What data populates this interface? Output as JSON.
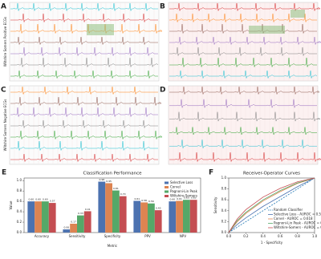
{
  "panels": [
    {
      "letter": "A",
      "side_label": "Wiltshire Somers Positive ECGs"
    },
    {
      "letter": "B"
    },
    {
      "letter": "C",
      "side_label": "Wiltshire Somers Negative ECGs"
    },
    {
      "letter": "D"
    }
  ],
  "chart_data": [
    {
      "type": "bar",
      "panel": "E",
      "title": "Classification Performance",
      "x_label": "Metric",
      "y_label": "Value",
      "categories": [
        "Accuracy",
        "Sensitivity",
        "Specificity",
        "PPV",
        "NPV"
      ],
      "ylim": [
        0,
        1.05
      ],
      "yticks": [
        {
          "value": 0,
          "label": "0.0"
        },
        0.2,
        0.4,
        0.6,
        0.8,
        {
          "value": 1,
          "label": "1.0"
        }
      ],
      "legend": "upper right",
      "series": [
        {
          "name": "Selective Loss",
          "color": "#4c72b0",
          "values": [
            0.6,
            0.06,
            0.98,
            0.61,
            0.6
          ],
          "value_labels": [
            "0.60",
            "0.06",
            "0.98",
            "0.61",
            "0.60"
          ]
        },
        {
          "name": "Corvel",
          "color": "#dd8452",
          "values": [
            0.6,
            0.17,
            0.95,
            0.58,
            0.61
          ],
          "value_labels": [
            "0.60",
            "0.17",
            "0.95",
            "0.58",
            "0.61"
          ]
        },
        {
          "name": "Pagnoni-Lin Peak",
          "color": "#55a868",
          "values": [
            0.6,
            0.33,
            0.81,
            0.56,
            0.63
          ],
          "value_labels": [
            "0.60",
            "0.33",
            "0.81",
            "0.56",
            "0.63"
          ]
        },
        {
          "name": "Wiltshire-Somers",
          "color": "#c44e52",
          "values": [
            0.57,
            0.41,
            0.7,
            0.43,
            0.63
          ],
          "value_labels": [
            "0.57",
            "0.41",
            "0.70",
            "0.43",
            "0.63"
          ]
        }
      ]
    },
    {
      "type": "line",
      "panel": "F",
      "title": "Receiver-Operator Curves",
      "x_label": "1 - Specificity",
      "y_label": "Sensitivity",
      "xlim": [
        0,
        1
      ],
      "ylim": [
        0,
        1
      ],
      "xticks": [
        {
          "value": 0,
          "label": "0.0"
        },
        0.2,
        0.4,
        0.6,
        0.8,
        {
          "value": 1,
          "label": "1.0"
        }
      ],
      "yticks": [
        {
          "value": 0,
          "label": "0.0"
        },
        0.2,
        0.4,
        0.6,
        0.8,
        {
          "value": 1,
          "label": "1.0"
        }
      ],
      "legend": "lower right",
      "series": [
        {
          "name": "Random Classifier",
          "color": "#1f77b4",
          "dashed": true,
          "x": [
            0,
            1
          ],
          "values": [
            0,
            1
          ]
        },
        {
          "name": "Selective Loss - AUROC = 0.556",
          "color": "#4c72b0",
          "x": [
            0,
            0.1,
            0.2,
            0.4,
            0.6,
            0.8,
            1
          ],
          "values": [
            0,
            0.15,
            0.27,
            0.48,
            0.66,
            0.84,
            1
          ]
        },
        {
          "name": "Corvel - AUROC = 0.618",
          "color": "#dd8452",
          "x": [
            0,
            0.1,
            0.2,
            0.4,
            0.6,
            0.8,
            1
          ],
          "values": [
            0,
            0.2,
            0.35,
            0.58,
            0.75,
            0.9,
            1
          ]
        },
        {
          "name": "Pagnoni-Lin Peak - AUROC = 0.636",
          "color": "#55a868",
          "x": [
            0,
            0.1,
            0.2,
            0.4,
            0.6,
            0.8,
            1
          ],
          "values": [
            0,
            0.22,
            0.37,
            0.6,
            0.77,
            0.91,
            1
          ]
        },
        {
          "name": "Wiltshire-Somers - AUROC = 0.670",
          "color": "#c44e52",
          "x": [
            0,
            0.1,
            0.2,
            0.4,
            0.6,
            0.8,
            1
          ],
          "values": [
            0,
            0.25,
            0.42,
            0.65,
            0.81,
            0.93,
            1
          ]
        }
      ]
    }
  ]
}
